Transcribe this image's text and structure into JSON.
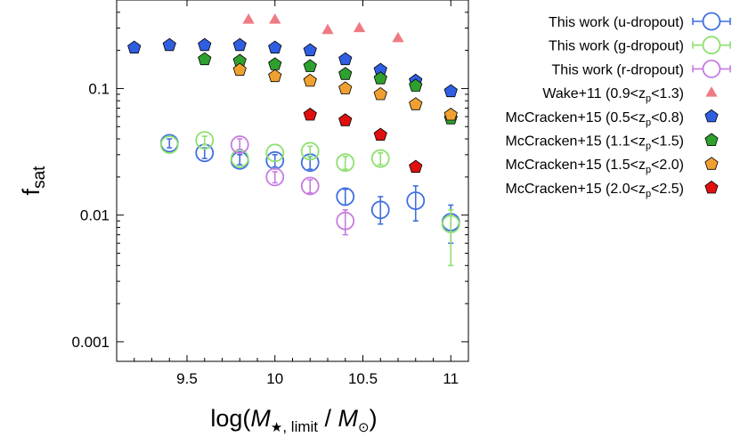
{
  "chart_data": {
    "type": "scatter",
    "title": "",
    "xlabel": {
      "prefix": "log(",
      "m1": "M",
      "star": "★",
      "sub": ", limit",
      "sep": " / ",
      "m2": "M",
      "sun": "⊙",
      "suffix": ")"
    },
    "ylabel": {
      "main": "f",
      "sub": "sat"
    },
    "xlim": [
      9.1,
      11.1
    ],
    "ylim": [
      0.0007,
      0.5
    ],
    "yscale": "log",
    "xticks": [
      {
        "v": 9.5,
        "label": "9.5"
      },
      {
        "v": 10,
        "label": "10"
      },
      {
        "v": 10.5,
        "label": "10.5"
      },
      {
        "v": 11,
        "label": "11"
      }
    ],
    "yticks": [
      {
        "v": 0.001,
        "label": "0.001"
      },
      {
        "v": 0.01,
        "label": "0.01"
      },
      {
        "v": 0.1,
        "label": "0.1"
      }
    ],
    "legend_position": "outside-right",
    "series": [
      {
        "key": "u",
        "name": "This work (u-dropout)",
        "marker": "open-circle",
        "color": "#3f6fe0",
        "points": [
          {
            "x": 9.4,
            "y": 0.037,
            "lo": 0.034,
            "hi": 0.04
          },
          {
            "x": 9.6,
            "y": 0.031,
            "lo": 0.028,
            "hi": 0.034
          },
          {
            "x": 9.8,
            "y": 0.027,
            "lo": 0.025,
            "hi": 0.03
          },
          {
            "x": 10.0,
            "y": 0.027,
            "lo": 0.024,
            "hi": 0.03
          },
          {
            "x": 10.2,
            "y": 0.026,
            "lo": 0.023,
            "hi": 0.029
          },
          {
            "x": 10.4,
            "y": 0.014,
            "lo": 0.012,
            "hi": 0.016
          },
          {
            "x": 10.6,
            "y": 0.011,
            "lo": 0.0085,
            "hi": 0.014
          },
          {
            "x": 10.8,
            "y": 0.013,
            "lo": 0.009,
            "hi": 0.017
          },
          {
            "x": 11.0,
            "y": 0.0088,
            "lo": 0.006,
            "hi": 0.012
          }
        ]
      },
      {
        "key": "g",
        "name": "This work (g-dropout)",
        "marker": "open-circle",
        "color": "#8ee06e",
        "points": [
          {
            "x": 9.4,
            "y": 0.036
          },
          {
            "x": 9.6,
            "y": 0.039,
            "lo": 0.036,
            "hi": 0.042
          },
          {
            "x": 9.8,
            "y": 0.028
          },
          {
            "x": 10.0,
            "y": 0.031
          },
          {
            "x": 10.2,
            "y": 0.032,
            "lo": 0.029,
            "hi": 0.035
          },
          {
            "x": 10.4,
            "y": 0.026,
            "lo": 0.023,
            "hi": 0.029
          },
          {
            "x": 10.6,
            "y": 0.028,
            "lo": 0.025,
            "hi": 0.031
          },
          {
            "x": 11.0,
            "y": 0.0085,
            "lo": 0.004,
            "hi": 0.011
          }
        ]
      },
      {
        "key": "r",
        "name": "This work (r-dropout)",
        "marker": "open-circle",
        "color": "#c77ce0",
        "points": [
          {
            "x": 9.8,
            "y": 0.036,
            "lo": 0.033,
            "hi": 0.04
          },
          {
            "x": 10.0,
            "y": 0.02,
            "lo": 0.018,
            "hi": 0.022
          },
          {
            "x": 10.2,
            "y": 0.017,
            "lo": 0.015,
            "hi": 0.019
          },
          {
            "x": 10.4,
            "y": 0.009,
            "lo": 0.007,
            "hi": 0.011
          }
        ]
      },
      {
        "key": "wake",
        "name": "Wake+11 (0.9<zp<1.3)",
        "label_parts": [
          "Wake+11 (0.9<z",
          "p",
          "<1.3)"
        ],
        "marker": "triangle",
        "color": "#f07a84",
        "points": [
          {
            "x": 9.85,
            "y": 0.35
          },
          {
            "x": 10.0,
            "y": 0.35
          },
          {
            "x": 10.3,
            "y": 0.29
          },
          {
            "x": 10.48,
            "y": 0.3
          },
          {
            "x": 10.7,
            "y": 0.25
          }
        ]
      },
      {
        "key": "m1",
        "name": "McCracken+15 (0.5<zp<0.8)",
        "label_parts": [
          "McCracken+15 (0.5<z",
          "p",
          "<0.8)"
        ],
        "marker": "pentagon",
        "color": "#2f5ee0",
        "points": [
          {
            "x": 9.2,
            "y": 0.21
          },
          {
            "x": 9.4,
            "y": 0.22
          },
          {
            "x": 9.6,
            "y": 0.22
          },
          {
            "x": 9.8,
            "y": 0.22
          },
          {
            "x": 10.0,
            "y": 0.21
          },
          {
            "x": 10.2,
            "y": 0.2
          },
          {
            "x": 10.4,
            "y": 0.17
          },
          {
            "x": 10.6,
            "y": 0.14
          },
          {
            "x": 10.8,
            "y": 0.115
          },
          {
            "x": 11.0,
            "y": 0.095
          }
        ]
      },
      {
        "key": "m2",
        "name": "McCracken+15 (1.1<zp<1.5)",
        "label_parts": [
          "McCracken+15 (1.1<z",
          "p",
          "<1.5)"
        ],
        "marker": "pentagon",
        "color": "#2ea02e",
        "points": [
          {
            "x": 9.6,
            "y": 0.17
          },
          {
            "x": 9.8,
            "y": 0.165
          },
          {
            "x": 10.0,
            "y": 0.155
          },
          {
            "x": 10.2,
            "y": 0.15
          },
          {
            "x": 10.4,
            "y": 0.13
          },
          {
            "x": 10.6,
            "y": 0.12
          },
          {
            "x": 10.8,
            "y": 0.105
          },
          {
            "x": 11.0,
            "y": 0.058
          }
        ]
      },
      {
        "key": "m3",
        "name": "McCracken+15 (1.5<zp<2.0)",
        "label_parts": [
          "McCracken+15 (1.5<z",
          "p",
          "<2.0)"
        ],
        "marker": "pentagon",
        "color": "#f0a030",
        "points": [
          {
            "x": 9.8,
            "y": 0.14
          },
          {
            "x": 10.0,
            "y": 0.125
          },
          {
            "x": 10.2,
            "y": 0.115
          },
          {
            "x": 10.4,
            "y": 0.1
          },
          {
            "x": 10.6,
            "y": 0.09
          },
          {
            "x": 10.8,
            "y": 0.075
          },
          {
            "x": 11.0,
            "y": 0.062
          }
        ]
      },
      {
        "key": "m4",
        "name": "McCracken+15 (2.0<zp<2.5)",
        "label_parts": [
          "McCracken+15 (2.0<z",
          "p",
          "<2.5)"
        ],
        "marker": "pentagon",
        "color": "#e01010",
        "points": [
          {
            "x": 10.2,
            "y": 0.062
          },
          {
            "x": 10.4,
            "y": 0.056
          },
          {
            "x": 10.6,
            "y": 0.043
          },
          {
            "x": 10.8,
            "y": 0.024
          }
        ]
      }
    ]
  }
}
